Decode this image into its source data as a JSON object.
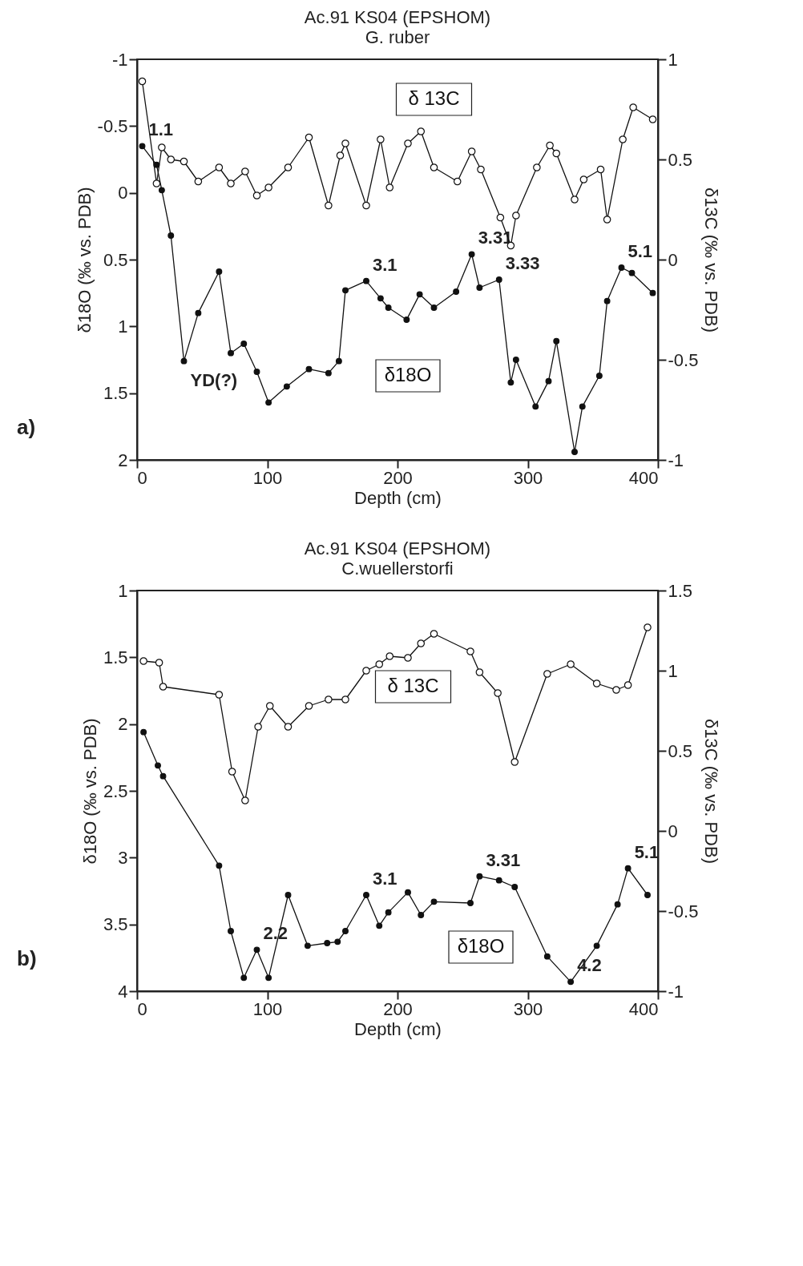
{
  "chart_data": [
    {
      "type": "line",
      "title": "Ac.91 KS04 (EPSHOM)",
      "subtitle": "G. ruber",
      "xlabel": "Depth (cm)",
      "ylabel": "δ18O (‰ vs. PDB)",
      "y2label": "δ13C (‰ vs. PDB)",
      "xlim": [
        0,
        400
      ],
      "xticks": [
        0,
        100,
        200,
        300,
        400
      ],
      "ylim": [
        2,
        -1
      ],
      "yticks": [
        -1,
        -0.5,
        0,
        0.5,
        1,
        1.5,
        2
      ],
      "y2lim": [
        -1,
        1
      ],
      "y2ticks": [
        -1,
        -0.5,
        0,
        0.5,
        1
      ],
      "grid": false,
      "marker": "circle",
      "line_style": "solid",
      "series": [
        {
          "name": "δ18O",
          "color": "#111111",
          "x": [
            4,
            15,
            19,
            26,
            36,
            47,
            63,
            72,
            82,
            92,
            101,
            115,
            132,
            147,
            155,
            160,
            176,
            187,
            193,
            207,
            217,
            228,
            245,
            257,
            263,
            278,
            287,
            291,
            306,
            316,
            322,
            336,
            342,
            355,
            361,
            372,
            380,
            396
          ],
          "values": [
            -0.35,
            -0.21,
            -0.02,
            0.32,
            1.26,
            0.9,
            0.59,
            1.2,
            1.13,
            1.34,
            1.57,
            1.45,
            1.32,
            1.35,
            1.26,
            0.73,
            0.66,
            0.79,
            0.86,
            0.95,
            0.76,
            0.86,
            0.74,
            0.46,
            0.71,
            0.65,
            1.42,
            1.25,
            1.6,
            1.41,
            1.11,
            1.94,
            1.6,
            1.37,
            0.81,
            0.56,
            0.6,
            0.75
          ]
        },
        {
          "name": "δ 13C",
          "color": "#111111",
          "axis": "y2",
          "x": [
            4,
            15,
            19,
            26,
            36,
            47,
            63,
            72,
            83,
            92,
            101,
            116,
            132,
            147,
            156,
            160,
            176,
            187,
            194,
            208,
            218,
            228,
            246,
            257,
            264,
            279,
            287,
            291,
            307,
            317,
            322,
            336,
            343,
            356,
            361,
            373,
            381,
            396
          ],
          "values": [
            0.89,
            0.38,
            0.56,
            0.5,
            0.49,
            0.39,
            0.46,
            0.38,
            0.44,
            0.32,
            0.36,
            0.46,
            0.61,
            0.27,
            0.52,
            0.58,
            0.27,
            0.6,
            0.36,
            0.58,
            0.64,
            0.46,
            0.39,
            0.54,
            0.45,
            0.21,
            0.07,
            0.22,
            0.46,
            0.57,
            0.53,
            0.3,
            0.4,
            0.45,
            0.2,
            0.6,
            0.76,
            0.7
          ]
        }
      ],
      "annotations": [
        "a)",
        {
          "text": "1.1",
          "x": 4,
          "y": -0.35
        },
        {
          "text": "YD(?)",
          "x": 36,
          "y": 1.26
        },
        {
          "text": "3.1",
          "x": 176,
          "y": 0.66
        },
        {
          "text": "3.31",
          "x": 257,
          "y": 0.46
        },
        {
          "text": "3.33",
          "x": 278,
          "y": 0.65
        },
        {
          "text": "5.1",
          "x": 372,
          "y": 0.56
        }
      ]
    },
    {
      "type": "line",
      "title": "Ac.91 KS04 (EPSHOM)",
      "subtitle": "C.wuellerstorfi",
      "xlabel": "Depth (cm)",
      "ylabel": "δ18O (‰ vs. PDB)",
      "y2label": "δ13C (‰ vs. PDB)",
      "xlim": [
        0,
        400
      ],
      "xticks": [
        0,
        100,
        200,
        300,
        400
      ],
      "ylim": [
        4,
        1
      ],
      "yticks": [
        1,
        1.5,
        2,
        2.5,
        3,
        3.5,
        4
      ],
      "y2lim": [
        -1,
        1.5
      ],
      "y2ticks": [
        -1,
        -0.5,
        0,
        0.5,
        1,
        1.5
      ],
      "grid": false,
      "marker": "circle",
      "line_style": "solid",
      "series": [
        {
          "name": "δ18O",
          "color": "#111111",
          "x": [
            5,
            16,
            20,
            63,
            72,
            82,
            92,
            101,
            116,
            131,
            146,
            154,
            160,
            176,
            186,
            193,
            208,
            218,
            228,
            256,
            263,
            278,
            290,
            315,
            333,
            353,
            369,
            377,
            392
          ],
          "values": [
            2.06,
            2.31,
            2.39,
            3.06,
            3.55,
            3.9,
            3.69,
            3.9,
            3.28,
            3.66,
            3.64,
            3.63,
            3.55,
            3.28,
            3.51,
            3.41,
            3.26,
            3.43,
            3.33,
            3.34,
            3.14,
            3.17,
            3.22,
            3.74,
            3.93,
            3.66,
            3.35,
            3.08,
            3.28
          ]
        },
        {
          "name": "δ 13C",
          "color": "#111111",
          "axis": "y2",
          "x": [
            5,
            17,
            20,
            63,
            73,
            83,
            93,
            102,
            116,
            132,
            147,
            160,
            176,
            186,
            194,
            208,
            218,
            228,
            256,
            263,
            277,
            290,
            315,
            333,
            353,
            368,
            377,
            392
          ],
          "values": [
            1.06,
            1.05,
            0.9,
            0.85,
            0.37,
            0.19,
            0.65,
            0.78,
            0.65,
            0.78,
            0.82,
            0.82,
            1.0,
            1.04,
            1.09,
            1.08,
            1.17,
            1.23,
            1.12,
            0.99,
            0.86,
            0.43,
            0.98,
            1.04,
            0.92,
            0.88,
            0.91,
            1.27
          ]
        }
      ],
      "annotations": [
        "b)",
        {
          "text": "2.2",
          "x": 92,
          "y": 3.69
        },
        {
          "text": "3.1",
          "x": 176,
          "y": 3.28
        },
        {
          "text": "3.31",
          "x": 263,
          "y": 3.14
        },
        {
          "text": "4.2",
          "x": 333,
          "y": 3.93
        },
        {
          "text": "5.1",
          "x": 377,
          "y": 3.08
        }
      ]
    }
  ]
}
